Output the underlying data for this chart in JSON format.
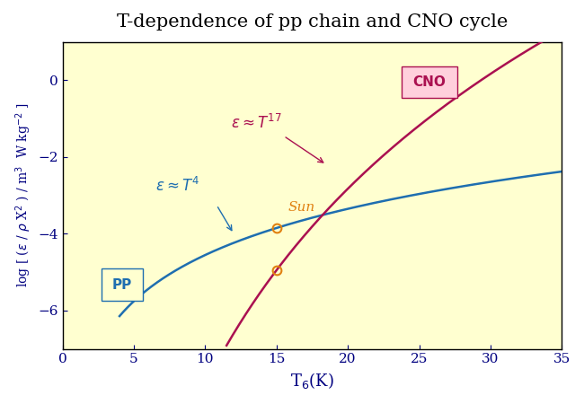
{
  "title": "T-dependence of pp chain and CNO cycle",
  "title_fontsize": 15,
  "xlabel": "T$_6$(K)",
  "xlim": [
    0,
    35
  ],
  "ylim": [
    -7,
    1
  ],
  "xticks": [
    0,
    5,
    10,
    15,
    20,
    25,
    30,
    35
  ],
  "yticks": [
    0,
    -2,
    -4,
    -6
  ],
  "bg_color": "#FFFFD0",
  "pp_color": "#1E6EB0",
  "cno_color": "#AA1050",
  "sun_color": "#E08010",
  "sun_T": 15.0,
  "sun_pp_y": -3.85,
  "sun_cno_y": -4.95,
  "label_pp": "PP",
  "label_cno": "CNO",
  "fig_width": 6.5,
  "fig_height": 4.5
}
